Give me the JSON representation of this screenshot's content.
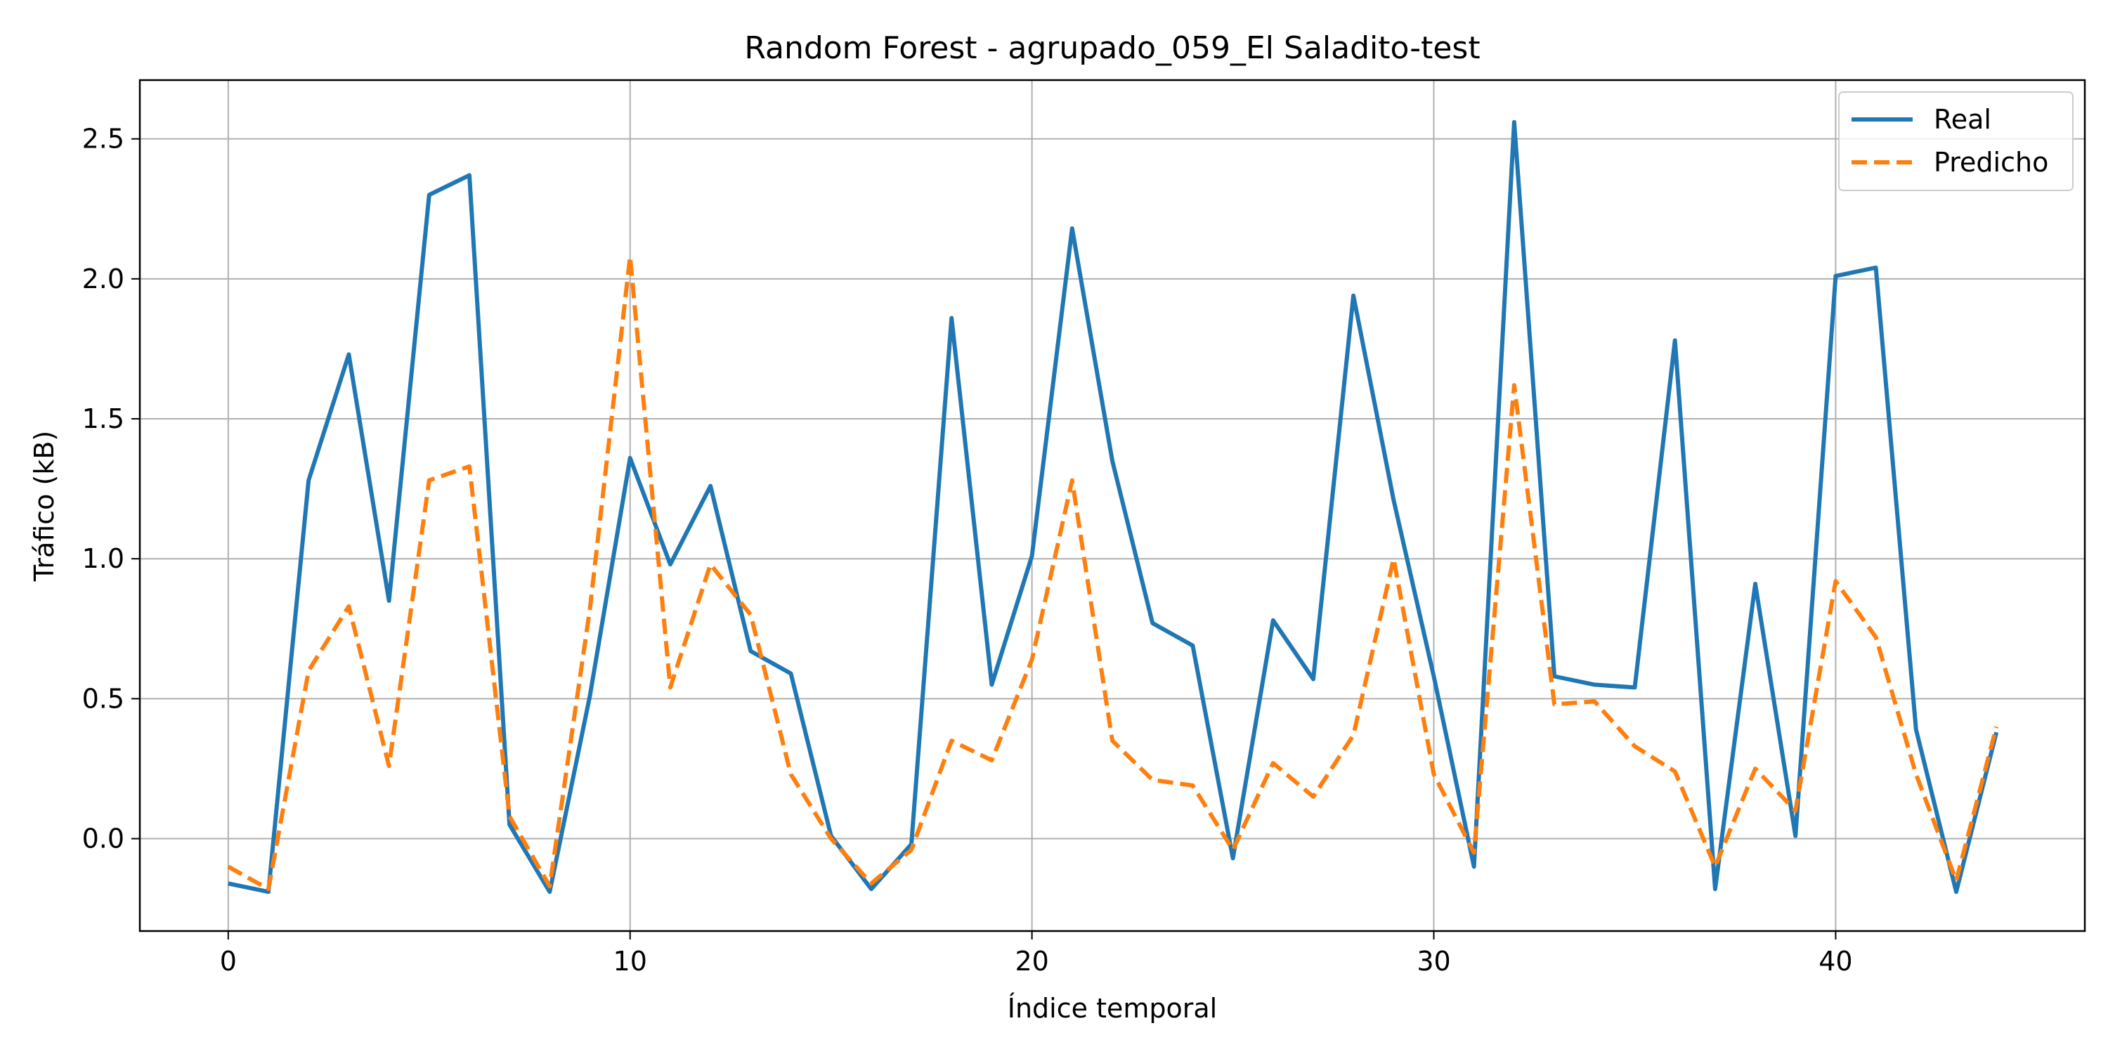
{
  "chart_data": {
    "type": "line",
    "title": "Random Forest - agrupado_059_El Saladito-test",
    "xlabel": "Índice temporal",
    "ylabel": "Tráfico (kB)",
    "xlim": [
      -2.2,
      46.2
    ],
    "ylim": [
      -0.33,
      2.71
    ],
    "xticks": [
      0,
      10,
      20,
      30,
      40
    ],
    "yticks": [
      0.0,
      0.5,
      1.0,
      1.5,
      2.0,
      2.5
    ],
    "ytick_labels": [
      "0.0",
      "0.5",
      "1.0",
      "1.5",
      "2.0",
      "2.5"
    ],
    "grid": true,
    "legend": "top-right",
    "x": [
      0,
      1,
      2,
      3,
      4,
      5,
      6,
      7,
      8,
      9,
      10,
      11,
      12,
      13,
      14,
      15,
      16,
      17,
      18,
      19,
      20,
      21,
      22,
      23,
      24,
      25,
      26,
      27,
      28,
      29,
      30,
      31,
      32,
      33,
      34,
      35,
      36,
      37,
      38,
      39,
      40,
      41,
      42,
      43,
      44
    ],
    "series": [
      {
        "name": "Real",
        "color": "#1f77b4",
        "style": "solid",
        "values": [
          -0.16,
          -0.19,
          1.28,
          1.73,
          0.85,
          2.3,
          2.37,
          0.05,
          -0.19,
          0.51,
          1.36,
          0.98,
          1.26,
          0.67,
          0.59,
          0.01,
          -0.18,
          -0.02,
          1.86,
          0.55,
          1.01,
          2.18,
          1.35,
          0.77,
          0.69,
          -0.07,
          0.78,
          0.57,
          1.94,
          1.21,
          0.58,
          -0.1,
          2.56,
          0.58,
          0.55,
          0.54,
          1.78,
          -0.18,
          0.91,
          0.01,
          2.01,
          2.04,
          0.39,
          -0.19,
          0.38
        ]
      },
      {
        "name": "Predicho",
        "color": "#ff7f0e",
        "style": "dashed",
        "values": [
          -0.1,
          -0.18,
          0.6,
          0.83,
          0.26,
          1.28,
          1.33,
          0.08,
          -0.17,
          0.82,
          2.08,
          0.54,
          0.98,
          0.8,
          0.23,
          0.0,
          -0.16,
          -0.04,
          0.35,
          0.28,
          0.64,
          1.28,
          0.35,
          0.21,
          0.19,
          -0.04,
          0.27,
          0.15,
          0.37,
          1.0,
          0.23,
          -0.05,
          1.62,
          0.48,
          0.49,
          0.33,
          0.24,
          -0.1,
          0.25,
          0.1,
          0.92,
          0.72,
          0.23,
          -0.15,
          0.4
        ]
      }
    ]
  }
}
